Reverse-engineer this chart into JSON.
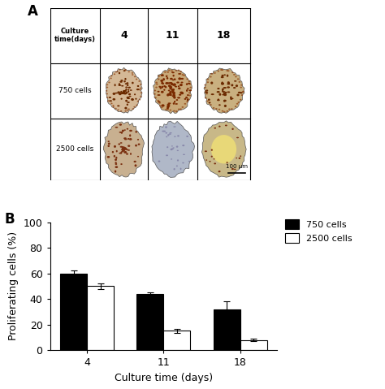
{
  "panel_b": {
    "days": [
      4,
      11,
      18
    ],
    "values_750": [
      60,
      44,
      32
    ],
    "values_2500": [
      50,
      15,
      8
    ],
    "errors_750": [
      2.5,
      1.5,
      6
    ],
    "errors_2500": [
      2,
      1.5,
      1
    ],
    "ylabel": "Proliferating cells (%)",
    "xlabel": "Culture time (days)",
    "ylim": [
      0,
      100
    ],
    "yticks": [
      0,
      20,
      40,
      60,
      80,
      100
    ],
    "legend_750": "750 cells",
    "legend_2500": "2500 cells",
    "color_750": "#000000",
    "color_2500": "#ffffff",
    "bar_width": 0.35,
    "bar_edge_color": "#000000"
  },
  "panel_a": {
    "header_text": "Culture\ntime(days)",
    "col_headers": [
      "4",
      "11",
      "18"
    ],
    "row_labels": [
      "750 cells",
      "2500 cells"
    ],
    "spheroids": {
      "750_4": {
        "bg": "#d4b896",
        "dot_col": "#6b2a00",
        "n_dots": 55,
        "dot_size": 0.012,
        "inner": null
      },
      "750_11": {
        "bg": "#c8a878",
        "dot_col": "#7a2a00",
        "n_dots": 90,
        "dot_size": 0.013,
        "inner": null
      },
      "750_18": {
        "bg": "#c9b080",
        "dot_col": "#6b2a00",
        "n_dots": 45,
        "dot_size": 0.013,
        "inner": null
      },
      "2500_4": {
        "bg": "#c8b090",
        "dot_col": "#7a3010",
        "n_dots": 60,
        "dot_size": 0.012,
        "inner": null
      },
      "2500_11": {
        "bg": "#b0b8c8",
        "dot_col": "#8888aa",
        "n_dots": 30,
        "dot_size": 0.01,
        "inner": null
      },
      "2500_18": {
        "bg": "#c8b888",
        "dot_col": "#7a3010",
        "n_dots": 20,
        "dot_size": 0.01,
        "inner": "#e8d878"
      }
    }
  }
}
